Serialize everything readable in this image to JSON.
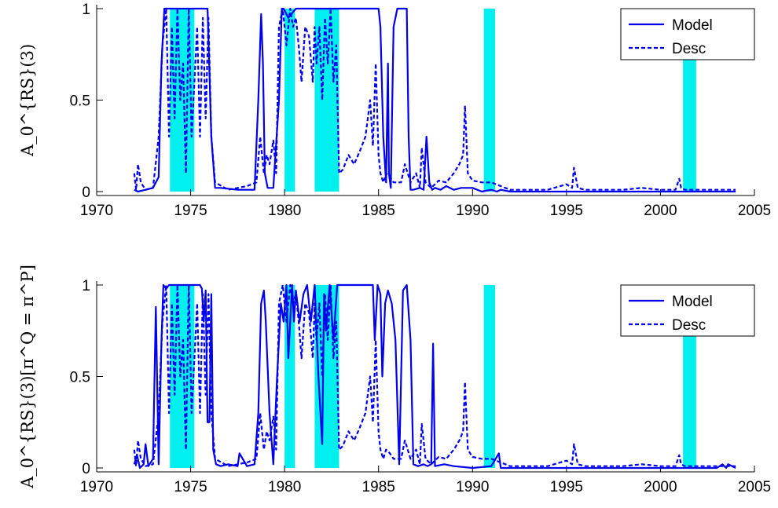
{
  "chart_data": [
    {
      "type": "line",
      "ylabel": "A_0^{RS}(3)",
      "xlim": [
        1970,
        2005
      ],
      "ylim": [
        0,
        1
      ],
      "xticks": [
        "1970",
        "1975",
        "1980",
        "1985",
        "1990",
        "1995",
        "2000",
        "2005"
      ],
      "yticks": [
        "0",
        "0.5",
        "1"
      ],
      "legend": {
        "position": "top-right",
        "entries": [
          "Model",
          "Desc"
        ]
      },
      "recessions": [
        [
          1973.9,
          1975.2
        ],
        [
          1980.0,
          1980.55
        ],
        [
          1981.6,
          1982.9
        ],
        [
          1990.6,
          1991.2
        ],
        [
          2001.2,
          2001.9
        ]
      ],
      "series": [
        {
          "name": "Model",
          "style": "solid",
          "color": "#0000ee",
          "x": [
            1972.0,
            1972.2,
            1972.6,
            1973.0,
            1973.3,
            1973.45,
            1973.6,
            1975.9,
            1976.1,
            1976.3,
            1976.6,
            1977.5,
            1978.4,
            1978.6,
            1978.75,
            1978.85,
            1978.95,
            1979.1,
            1979.4,
            1979.7,
            1979.85,
            1979.95,
            1980.2,
            1980.6,
            1981.0,
            1982.0,
            1983.0,
            1984.0,
            1985.0,
            1985.1,
            1985.25,
            1985.4,
            1985.5,
            1985.55,
            1985.65,
            1985.8,
            1986.0,
            1986.2,
            1986.5,
            1986.6,
            1986.7,
            1986.85,
            1987.2,
            1987.4,
            1987.55,
            1987.7,
            1987.85,
            1988.0,
            1988.3,
            1988.6,
            1989.0,
            1989.4,
            1990.0,
            1990.5,
            1991.0,
            1991.3,
            1991.5,
            1992.0,
            1993.0,
            1995.0,
            1998.0,
            2001.0,
            2002.0,
            2004.0
          ],
          "y": [
            0.01,
            0.0,
            0.01,
            0.02,
            0.08,
            0.7,
            1.0,
            1.0,
            0.3,
            0.02,
            0.02,
            0.01,
            0.01,
            0.5,
            0.97,
            0.7,
            0.1,
            0.02,
            0.02,
            0.5,
            1.0,
            1.0,
            0.95,
            1.0,
            1.0,
            1.0,
            1.0,
            1.0,
            1.0,
            0.9,
            0.3,
            0.05,
            0.7,
            0.1,
            0.02,
            0.9,
            1.0,
            1.0,
            1.0,
            0.3,
            0.01,
            0.01,
            0.02,
            0.01,
            0.3,
            0.05,
            0.01,
            0.02,
            0.01,
            0.03,
            0.01,
            0.02,
            0.02,
            0.0,
            0.01,
            0.0,
            0.01,
            0.0,
            0.0,
            0.0,
            0.0,
            0.0,
            0.0,
            0.0
          ]
        },
        {
          "name": "Desc",
          "style": "dashed",
          "color": "#0000ee",
          "x": [
            1972.0,
            1972.1,
            1972.2,
            1972.35,
            1972.6,
            1973.0,
            1973.3,
            1973.5,
            1973.7,
            1973.85,
            1974.0,
            1974.15,
            1974.3,
            1974.45,
            1974.6,
            1974.75,
            1974.9,
            1975.05,
            1975.2,
            1975.35,
            1975.5,
            1975.65,
            1975.8,
            1975.95,
            1976.1,
            1976.3,
            1977.0,
            1978.0,
            1978.5,
            1978.7,
            1978.9,
            1979.05,
            1979.2,
            1979.4,
            1979.55,
            1979.7,
            1979.9,
            1980.1,
            1980.3,
            1980.45,
            1980.6,
            1980.75,
            1980.9,
            1981.1,
            1981.3,
            1981.5,
            1981.6,
            1981.7,
            1981.85,
            1982.0,
            1982.15,
            1982.3,
            1982.45,
            1982.6,
            1982.75,
            1982.9,
            1983.1,
            1983.4,
            1983.7,
            1984.0,
            1984.3,
            1984.55,
            1984.7,
            1984.85,
            1985.0,
            1985.1,
            1985.25,
            1985.4,
            1985.6,
            1985.8,
            1986.2,
            1986.4,
            1986.7,
            1987.0,
            1987.2,
            1987.3,
            1987.5,
            1987.8,
            1988.2,
            1988.6,
            1989.0,
            1989.3,
            1989.5,
            1989.6,
            1989.75,
            1990.0,
            1990.5,
            1991.0,
            1991.5,
            1992.0,
            1993.0,
            1994.0,
            1995.0,
            1995.3,
            1995.4,
            1995.6,
            1996.0,
            1997.0,
            1998.0,
            1999.0,
            2000.0,
            2000.8,
            2001.0,
            2001.1,
            2001.3,
            2002.0,
            2004.0
          ],
          "y": [
            0.1,
            0.01,
            0.15,
            0.05,
            0.01,
            0.02,
            0.3,
            0.8,
            1.0,
            0.3,
            0.9,
            0.4,
            1.0,
            0.5,
            0.7,
            0.1,
            1.0,
            0.3,
            0.6,
            0.9,
            0.3,
            0.95,
            0.4,
            0.95,
            0.3,
            0.05,
            0.01,
            0.03,
            0.05,
            0.3,
            0.1,
            0.2,
            0.15,
            0.28,
            0.1,
            0.9,
            1.0,
            0.8,
            1.0,
            0.9,
            0.95,
            0.8,
            0.6,
            0.9,
            0.85,
            0.6,
            0.9,
            0.7,
            0.9,
            0.5,
            0.95,
            0.7,
            1.0,
            0.6,
            0.8,
            0.1,
            0.12,
            0.2,
            0.15,
            0.22,
            0.3,
            0.5,
            0.25,
            0.7,
            0.2,
            0.1,
            0.05,
            0.1,
            0.08,
            0.05,
            0.05,
            0.15,
            0.05,
            0.1,
            0.02,
            0.24,
            0.05,
            0.02,
            0.06,
            0.05,
            0.1,
            0.15,
            0.2,
            0.47,
            0.1,
            0.06,
            0.05,
            0.05,
            0.03,
            0.01,
            0.01,
            0.01,
            0.04,
            0.02,
            0.13,
            0.02,
            0.01,
            0.01,
            0.01,
            0.02,
            0.01,
            0.01,
            0.07,
            0.02,
            0.01,
            0.01,
            0.01
          ]
        }
      ]
    },
    {
      "type": "line",
      "ylabel": "A_0^{RS}(3)[π^Q = π^P]",
      "xlim": [
        1970,
        2005
      ],
      "ylim": [
        0,
        1
      ],
      "xticks": [
        "1970",
        "1975",
        "1980",
        "1985",
        "1990",
        "1995",
        "2000",
        "2005"
      ],
      "yticks": [
        "0",
        "0.5",
        "1"
      ],
      "legend": {
        "position": "top-right",
        "entries": [
          "Model",
          "Desc"
        ]
      },
      "recessions": [
        [
          1973.9,
          1975.2
        ],
        [
          1980.0,
          1980.55
        ],
        [
          1981.6,
          1982.9
        ],
        [
          1990.6,
          1991.2
        ],
        [
          2001.2,
          2001.9
        ]
      ],
      "series": [
        {
          "name": "Model",
          "style": "solid",
          "color": "#0000ee",
          "x": [
            1972.0,
            1972.15,
            1972.3,
            1972.5,
            1972.6,
            1972.75,
            1973.0,
            1973.15,
            1973.3,
            1973.45,
            1973.55,
            1973.7,
            1973.85,
            1975.5,
            1975.6,
            1975.7,
            1975.8,
            1975.9,
            1976.0,
            1976.1,
            1976.2,
            1976.35,
            1976.6,
            1977.0,
            1977.5,
            1977.6,
            1978.0,
            1978.4,
            1978.6,
            1978.75,
            1978.9,
            1979.0,
            1979.2,
            1979.4,
            1979.6,
            1979.8,
            1979.95,
            1980.1,
            1980.2,
            1980.4,
            1980.5,
            1980.6,
            1980.8,
            1981.0,
            1981.2,
            1981.4,
            1981.6,
            1981.8,
            1982.0,
            1982.1,
            1982.2,
            1982.4,
            1982.6,
            1982.8,
            1983.0,
            1984.0,
            1984.7,
            1984.8,
            1984.95,
            1985.1,
            1985.2,
            1985.35,
            1985.5,
            1985.7,
            1985.9,
            1986.1,
            1986.3,
            1986.5,
            1986.7,
            1986.85,
            1987.1,
            1987.4,
            1987.6,
            1987.8,
            1987.9,
            1988.0,
            1988.5,
            1989.0,
            1990.0,
            1991.0,
            1991.4,
            1991.5,
            1992.0,
            1995.0,
            1999.0,
            2002.5,
            2003.0,
            2003.3,
            2003.5,
            2003.6,
            2004.0
          ],
          "y": [
            0.02,
            0.07,
            0.0,
            0.02,
            0.13,
            0.01,
            0.05,
            0.88,
            0.02,
            0.7,
            1.0,
            0.98,
            1.0,
            1.0,
            0.98,
            0.8,
            0.97,
            0.25,
            0.25,
            0.95,
            0.1,
            0.02,
            0.01,
            0.02,
            0.01,
            0.08,
            0.01,
            0.02,
            0.3,
            0.9,
            0.97,
            0.8,
            0.3,
            0.02,
            0.5,
            0.9,
            0.8,
            1.0,
            0.6,
            1.0,
            0.8,
            0.97,
            0.8,
            0.95,
            1.0,
            0.8,
            1.0,
            0.5,
            0.13,
            0.95,
            0.75,
            1.0,
            0.7,
            1.0,
            1.0,
            1.0,
            1.0,
            0.7,
            1.0,
            0.95,
            0.5,
            0.9,
            0.97,
            0.9,
            0.7,
            0.02,
            0.97,
            1.0,
            0.7,
            0.02,
            0.01,
            0.02,
            0.01,
            0.02,
            0.68,
            0.01,
            0.02,
            0.01,
            0.0,
            0.01,
            0.08,
            0.0,
            0.0,
            0.0,
            0.0,
            0.0,
            0.0,
            0.02,
            0.0,
            0.02,
            0.0
          ]
        },
        {
          "name": "Desc",
          "style": "dashed",
          "color": "#0000ee",
          "x": [
            1972.0,
            1972.1,
            1972.2,
            1972.35,
            1972.6,
            1973.0,
            1973.3,
            1973.5,
            1973.7,
            1973.85,
            1974.0,
            1974.15,
            1974.3,
            1974.45,
            1974.6,
            1974.75,
            1974.9,
            1975.05,
            1975.2,
            1975.35,
            1975.5,
            1975.65,
            1975.8,
            1975.95,
            1976.1,
            1976.3,
            1977.0,
            1978.0,
            1978.5,
            1978.7,
            1978.9,
            1979.05,
            1979.2,
            1979.4,
            1979.55,
            1979.7,
            1979.9,
            1980.1,
            1980.3,
            1980.45,
            1980.6,
            1980.75,
            1980.9,
            1981.1,
            1981.3,
            1981.5,
            1981.6,
            1981.7,
            1981.85,
            1982.0,
            1982.15,
            1982.3,
            1982.45,
            1982.6,
            1982.75,
            1982.9,
            1983.1,
            1983.4,
            1983.7,
            1984.0,
            1984.3,
            1984.55,
            1984.7,
            1984.85,
            1985.0,
            1985.1,
            1985.25,
            1985.4,
            1985.6,
            1985.8,
            1986.2,
            1986.4,
            1986.7,
            1987.0,
            1987.2,
            1987.3,
            1987.5,
            1987.8,
            1988.2,
            1988.6,
            1989.0,
            1989.3,
            1989.5,
            1989.6,
            1989.75,
            1990.0,
            1990.5,
            1991.0,
            1991.5,
            1992.0,
            1993.0,
            1994.0,
            1995.0,
            1995.3,
            1995.4,
            1995.6,
            1996.0,
            1997.0,
            1998.0,
            1999.0,
            2000.0,
            2000.8,
            2001.0,
            2001.1,
            2001.3,
            2002.0,
            2004.0
          ],
          "y": [
            0.1,
            0.01,
            0.15,
            0.05,
            0.01,
            0.02,
            0.3,
            0.8,
            1.0,
            0.3,
            0.9,
            0.4,
            1.0,
            0.5,
            0.7,
            0.1,
            1.0,
            0.3,
            0.6,
            0.9,
            0.3,
            0.95,
            0.4,
            0.95,
            0.3,
            0.05,
            0.01,
            0.03,
            0.05,
            0.3,
            0.1,
            0.2,
            0.15,
            0.28,
            0.1,
            0.9,
            1.0,
            0.8,
            1.0,
            0.9,
            0.95,
            0.8,
            0.6,
            0.9,
            0.85,
            0.6,
            0.9,
            0.7,
            0.9,
            0.5,
            0.95,
            0.7,
            1.0,
            0.6,
            0.8,
            0.1,
            0.12,
            0.2,
            0.15,
            0.22,
            0.3,
            0.5,
            0.25,
            0.7,
            0.2,
            0.1,
            0.05,
            0.1,
            0.08,
            0.05,
            0.05,
            0.15,
            0.05,
            0.1,
            0.02,
            0.24,
            0.05,
            0.02,
            0.06,
            0.05,
            0.1,
            0.15,
            0.2,
            0.47,
            0.1,
            0.06,
            0.05,
            0.05,
            0.03,
            0.01,
            0.01,
            0.01,
            0.04,
            0.02,
            0.13,
            0.02,
            0.01,
            0.01,
            0.01,
            0.02,
            0.01,
            0.01,
            0.07,
            0.02,
            0.01,
            0.01,
            0.01
          ]
        }
      ]
    }
  ],
  "colors": {
    "recession": "#00f0f0",
    "line": "#0000ee",
    "axis": "#000000"
  }
}
